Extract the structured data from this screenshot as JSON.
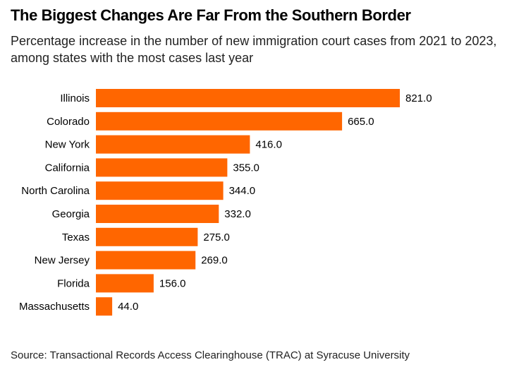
{
  "header": {
    "title": "The Biggest Changes Are Far From the Southern Border",
    "subtitle": "Percentage increase in the number of new immigration court cases from 2021 to 2023, among states with the most cases last year"
  },
  "footer": {
    "source": "Source: Transactional Records Access Clearinghouse (TRAC) at Syracuse University"
  },
  "colors": {
    "bar": "#ff6600"
  },
  "chart_data": {
    "type": "bar",
    "orientation": "horizontal",
    "categories": [
      "Illinois",
      "Colorado",
      "New York",
      "California",
      "North Carolina",
      "Georgia",
      "Texas",
      "New Jersey",
      "Florida",
      "Massachusetts"
    ],
    "values": [
      821.0,
      665.0,
      416.0,
      355.0,
      344.0,
      332.0,
      275.0,
      269.0,
      156.0,
      44.0
    ],
    "value_labels": [
      "821.0",
      "665.0",
      "416.0",
      "355.0",
      "344.0",
      "332.0",
      "275.0",
      "269.0",
      "156.0",
      "44.0"
    ],
    "xlim": [
      0,
      821
    ],
    "grid": false,
    "legend": "none"
  }
}
